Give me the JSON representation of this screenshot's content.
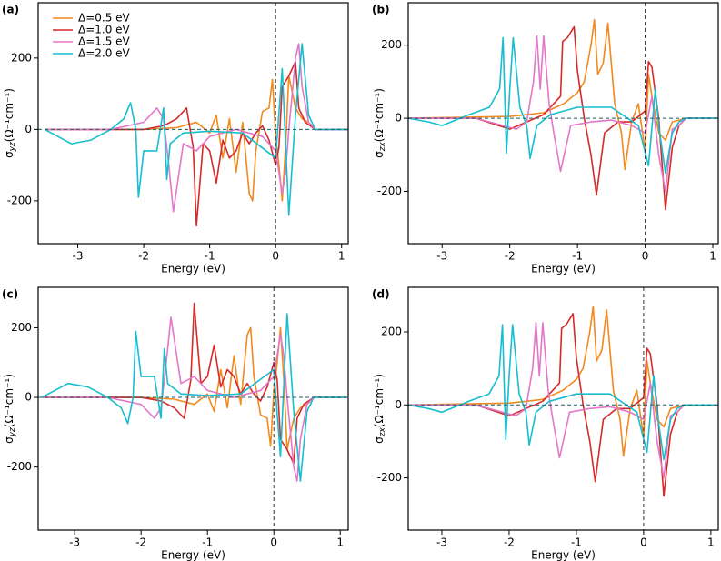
{
  "chart_data": [
    {
      "type": "line",
      "label": "(a)",
      "xlabel": "Energy (eV)",
      "ylabel": "σ",
      "ylabel_sub": "yz",
      "ylabel_unit": "(Ω⁻¹cm⁻¹)",
      "xlim": [
        -3.6,
        1.1
      ],
      "ylim": [
        -320,
        355
      ],
      "xticks": [
        -3,
        -2,
        -1,
        0,
        1
      ],
      "yticks": [
        -200,
        0,
        200
      ],
      "legend": "upper left",
      "series": [
        {
          "name": "Δ=0.5 eV",
          "color": "#f28a1e",
          "x": [
            -3.5,
            -2.0,
            -1.5,
            -1.2,
            -1.0,
            -0.9,
            -0.8,
            -0.7,
            -0.6,
            -0.5,
            -0.4,
            -0.35,
            -0.3,
            -0.2,
            -0.1,
            -0.05,
            0.0,
            0.05,
            0.1,
            0.15,
            0.2,
            0.3,
            0.4,
            0.5,
            0.6,
            0.8,
            1.1
          ],
          "values": [
            0,
            0,
            5,
            20,
            -10,
            40,
            -80,
            30,
            -120,
            20,
            -180,
            -200,
            -60,
            50,
            60,
            140,
            -20,
            -100,
            -200,
            -50,
            150,
            60,
            30,
            20,
            0,
            0,
            0
          ]
        },
        {
          "name": "Δ=1.0 eV",
          "color": "#d62a2a",
          "x": [
            -3.5,
            -2.0,
            -1.7,
            -1.5,
            -1.35,
            -1.25,
            -1.2,
            -1.1,
            -1.0,
            -0.9,
            -0.8,
            -0.7,
            -0.6,
            -0.5,
            -0.4,
            -0.3,
            -0.2,
            -0.1,
            0.0,
            0.05,
            0.1,
            0.2,
            0.3,
            0.35,
            0.45,
            0.6,
            1.1
          ],
          "values": [
            0,
            0,
            10,
            30,
            60,
            -50,
            -270,
            -40,
            -60,
            -150,
            -30,
            -80,
            -60,
            -10,
            -40,
            -10,
            10,
            -30,
            -100,
            -50,
            120,
            150,
            190,
            60,
            20,
            0,
            0
          ]
        },
        {
          "name": "Δ=1.5 eV",
          "color": "#e377c8",
          "x": [
            -3.5,
            -2.5,
            -2.0,
            -1.8,
            -1.7,
            -1.62,
            -1.55,
            -1.4,
            -1.2,
            -1.0,
            -0.8,
            -0.6,
            -0.4,
            -0.2,
            0.0,
            0.1,
            0.15,
            0.2,
            0.3,
            0.35,
            0.4,
            0.5,
            0.6,
            1.1
          ],
          "values": [
            0,
            0,
            20,
            60,
            30,
            -100,
            -230,
            -40,
            -60,
            -20,
            -10,
            0,
            -10,
            -20,
            -60,
            -180,
            -120,
            0,
            200,
            240,
            120,
            20,
            0,
            0
          ]
        },
        {
          "name": "Δ=2.0 eV",
          "color": "#17becf",
          "x": [
            -3.5,
            -3.3,
            -3.1,
            -2.8,
            -2.5,
            -2.3,
            -2.2,
            -2.12,
            -2.08,
            -2.0,
            -1.8,
            -1.7,
            -1.65,
            -1.6,
            -1.4,
            -1.0,
            -0.5,
            0.0,
            0.1,
            0.2,
            0.3,
            0.4,
            0.5,
            0.6,
            1.1
          ],
          "values": [
            0,
            -20,
            -40,
            -30,
            0,
            30,
            75,
            0,
            -190,
            -60,
            -60,
            60,
            -140,
            -40,
            -10,
            -5,
            -10,
            -80,
            170,
            -240,
            40,
            240,
            40,
            0,
            0
          ]
        }
      ]
    },
    {
      "type": "line",
      "label": "(b)",
      "xlabel": "Energy (eV)",
      "ylabel": "σ",
      "ylabel_sub": "zx",
      "ylabel_unit": "(Ω⁻¹cm⁻¹)",
      "xlim": [
        -3.5,
        1.08
      ],
      "ylim": [
        -343,
        316
      ],
      "xticks": [
        -3,
        -2,
        -1,
        0,
        1
      ],
      "yticks": [
        -200,
        0,
        200
      ],
      "series": [
        {
          "color": "#f28a1e",
          "x": [
            -3.5,
            -2.0,
            -1.5,
            -1.2,
            -1.0,
            -0.9,
            -0.8,
            -0.75,
            -0.7,
            -0.62,
            -0.55,
            -0.45,
            -0.35,
            -0.3,
            -0.2,
            -0.1,
            0.0,
            0.05,
            0.1,
            0.2,
            0.3,
            0.4,
            0.6,
            1.1
          ],
          "values": [
            0,
            5,
            15,
            40,
            70,
            100,
            200,
            270,
            120,
            150,
            260,
            40,
            -40,
            -140,
            -10,
            40,
            -90,
            120,
            60,
            -40,
            -60,
            -10,
            0,
            0
          ]
        },
        {
          "color": "#d62a2a",
          "x": [
            -3.5,
            -2.5,
            -2.0,
            -1.5,
            -1.25,
            -1.22,
            -1.15,
            -1.05,
            -1.0,
            -0.9,
            -0.8,
            -0.72,
            -0.6,
            -0.4,
            -0.2,
            0.0,
            0.05,
            0.1,
            0.2,
            0.3,
            0.4,
            0.5,
            0.6,
            1.1
          ],
          "values": [
            0,
            0,
            -30,
            10,
            60,
            210,
            220,
            250,
            130,
            0,
            -100,
            -210,
            -40,
            -10,
            -10,
            20,
            155,
            140,
            0,
            -250,
            -80,
            -20,
            0,
            0
          ]
        },
        {
          "color": "#e377c8",
          "x": [
            -3.5,
            -2.5,
            -1.9,
            -1.75,
            -1.65,
            -1.6,
            -1.55,
            -1.5,
            -1.42,
            -1.35,
            -1.25,
            -1.1,
            -0.8,
            -0.5,
            -0.2,
            0.0,
            0.1,
            0.2,
            0.3,
            0.4,
            0.5,
            0.6,
            1.1
          ],
          "values": [
            0,
            0,
            -30,
            -10,
            100,
            225,
            80,
            225,
            40,
            -40,
            -145,
            -20,
            -10,
            -5,
            -20,
            -40,
            60,
            -100,
            -200,
            -30,
            -20,
            0,
            0
          ]
        },
        {
          "color": "#17becf",
          "x": [
            -3.5,
            -3.2,
            -3.0,
            -2.6,
            -2.3,
            -2.15,
            -2.1,
            -2.05,
            -2.0,
            -1.95,
            -1.85,
            -1.75,
            -1.7,
            -1.6,
            -1.4,
            -1.0,
            -0.5,
            -0.1,
            0.05,
            0.15,
            0.2,
            0.3,
            0.4,
            0.5,
            0.6,
            1.1
          ],
          "values": [
            0,
            -10,
            -20,
            10,
            30,
            80,
            220,
            -95,
            80,
            220,
            30,
            -20,
            -110,
            -20,
            10,
            30,
            30,
            -20,
            -130,
            80,
            -20,
            -150,
            -40,
            -10,
            0,
            0
          ]
        }
      ]
    },
    {
      "type": "line",
      "label": "(c)",
      "xlabel": "Energy (eV)",
      "ylabel": "σ",
      "ylabel_sub": "yz",
      "ylabel_unit": "(Ω⁻¹cm⁻¹)",
      "xlim": [
        -3.55,
        1.12
      ],
      "ylim": [
        -381,
        316
      ],
      "xticks": [
        -3,
        -2,
        -1,
        0,
        1
      ],
      "yticks": [
        -200,
        0,
        200
      ],
      "series": [
        {
          "color": "#f28a1e",
          "x": [
            -3.5,
            -2.0,
            -1.5,
            -1.2,
            -1.0,
            -0.9,
            -0.8,
            -0.7,
            -0.6,
            -0.5,
            -0.4,
            -0.35,
            -0.3,
            -0.2,
            -0.1,
            -0.05,
            0.0,
            0.05,
            0.1,
            0.15,
            0.2,
            0.3,
            0.4,
            0.5,
            0.6,
            0.8,
            1.1
          ],
          "values": [
            0,
            0,
            -5,
            -20,
            10,
            -40,
            80,
            -30,
            120,
            -20,
            180,
            200,
            60,
            -50,
            -60,
            -140,
            20,
            100,
            200,
            50,
            -150,
            -60,
            -30,
            -20,
            0,
            0,
            0
          ]
        },
        {
          "color": "#d62a2a",
          "x": [
            -3.5,
            -2.0,
            -1.7,
            -1.5,
            -1.35,
            -1.25,
            -1.2,
            -1.1,
            -1.0,
            -0.9,
            -0.8,
            -0.7,
            -0.6,
            -0.5,
            -0.4,
            -0.3,
            -0.2,
            -0.1,
            0.0,
            0.05,
            0.1,
            0.2,
            0.3,
            0.35,
            0.45,
            0.6,
            1.1
          ],
          "values": [
            0,
            0,
            -10,
            -30,
            -60,
            50,
            270,
            40,
            60,
            150,
            30,
            80,
            60,
            10,
            40,
            10,
            -10,
            30,
            100,
            50,
            -120,
            -150,
            -190,
            -60,
            -20,
            0,
            0
          ]
        },
        {
          "color": "#e377c8",
          "x": [
            -3.5,
            -2.5,
            -2.0,
            -1.8,
            -1.7,
            -1.62,
            -1.55,
            -1.4,
            -1.2,
            -1.0,
            -0.8,
            -0.6,
            -0.4,
            -0.2,
            0.0,
            0.1,
            0.15,
            0.2,
            0.3,
            0.35,
            0.4,
            0.5,
            0.6,
            1.1
          ],
          "values": [
            0,
            0,
            -20,
            -60,
            -30,
            100,
            230,
            40,
            60,
            20,
            10,
            0,
            10,
            20,
            60,
            180,
            120,
            0,
            -200,
            -240,
            -120,
            -20,
            0,
            0
          ]
        },
        {
          "color": "#17becf",
          "x": [
            -3.5,
            -3.3,
            -3.1,
            -2.8,
            -2.5,
            -2.3,
            -2.2,
            -2.12,
            -2.08,
            -2.0,
            -1.8,
            -1.7,
            -1.65,
            -1.6,
            -1.4,
            -1.0,
            -0.5,
            0.0,
            0.1,
            0.2,
            0.3,
            0.4,
            0.5,
            0.6,
            1.1
          ],
          "values": [
            0,
            20,
            40,
            30,
            0,
            -30,
            -75,
            0,
            190,
            60,
            60,
            -60,
            140,
            40,
            10,
            5,
            10,
            80,
            -170,
            240,
            -40,
            -240,
            -40,
            0,
            0
          ]
        }
      ]
    },
    {
      "type": "line",
      "label": "(d)",
      "xlabel": "Energy (eV)",
      "ylabel": "σ",
      "ylabel_sub": "zx",
      "ylabel_unit": "(Ω⁻¹cm⁻¹)",
      "xlim": [
        -3.5,
        1.11
      ],
      "ylim": [
        -343,
        322
      ],
      "xticks": [
        -3,
        -2,
        -1,
        0,
        1
      ],
      "yticks": [
        -200,
        0,
        200
      ],
      "series": [
        {
          "color": "#f28a1e",
          "x": [
            -3.5,
            -2.0,
            -1.5,
            -1.2,
            -1.0,
            -0.9,
            -0.8,
            -0.75,
            -0.7,
            -0.62,
            -0.55,
            -0.45,
            -0.35,
            -0.3,
            -0.2,
            -0.1,
            0.0,
            0.05,
            0.1,
            0.2,
            0.3,
            0.4,
            0.6,
            1.1
          ],
          "values": [
            0,
            5,
            15,
            40,
            70,
            100,
            200,
            270,
            120,
            150,
            260,
            40,
            -40,
            -140,
            -10,
            40,
            -90,
            120,
            60,
            -40,
            -60,
            -10,
            0,
            0
          ]
        },
        {
          "color": "#d62a2a",
          "x": [
            -3.5,
            -2.5,
            -2.0,
            -1.5,
            -1.25,
            -1.22,
            -1.15,
            -1.05,
            -1.0,
            -0.9,
            -0.8,
            -0.72,
            -0.6,
            -0.4,
            -0.2,
            0.0,
            0.05,
            0.1,
            0.2,
            0.3,
            0.4,
            0.5,
            0.6,
            1.1
          ],
          "values": [
            0,
            0,
            -30,
            10,
            60,
            210,
            220,
            250,
            130,
            0,
            -100,
            -210,
            -40,
            -10,
            -10,
            20,
            155,
            140,
            0,
            -250,
            -80,
            -20,
            0,
            0
          ]
        },
        {
          "color": "#e377c8",
          "x": [
            -3.5,
            -2.5,
            -1.9,
            -1.75,
            -1.65,
            -1.6,
            -1.55,
            -1.5,
            -1.42,
            -1.35,
            -1.25,
            -1.1,
            -0.8,
            -0.5,
            -0.2,
            0.0,
            0.1,
            0.2,
            0.3,
            0.4,
            0.5,
            0.6,
            1.1
          ],
          "values": [
            0,
            0,
            -30,
            -10,
            100,
            225,
            80,
            225,
            40,
            -40,
            -145,
            -20,
            -10,
            -5,
            -20,
            -40,
            60,
            -100,
            -200,
            -30,
            -20,
            0,
            0
          ]
        },
        {
          "color": "#17becf",
          "x": [
            -3.5,
            -3.2,
            -3.0,
            -2.6,
            -2.3,
            -2.15,
            -2.1,
            -2.05,
            -2.0,
            -1.95,
            -1.85,
            -1.75,
            -1.7,
            -1.6,
            -1.4,
            -1.0,
            -0.5,
            -0.1,
            0.05,
            0.15,
            0.2,
            0.3,
            0.4,
            0.5,
            0.6,
            1.1
          ],
          "values": [
            0,
            -10,
            -20,
            10,
            30,
            80,
            220,
            -95,
            80,
            220,
            30,
            -20,
            -110,
            -20,
            10,
            30,
            30,
            -20,
            -130,
            80,
            -20,
            -150,
            -40,
            -10,
            0,
            0
          ]
        }
      ]
    }
  ]
}
